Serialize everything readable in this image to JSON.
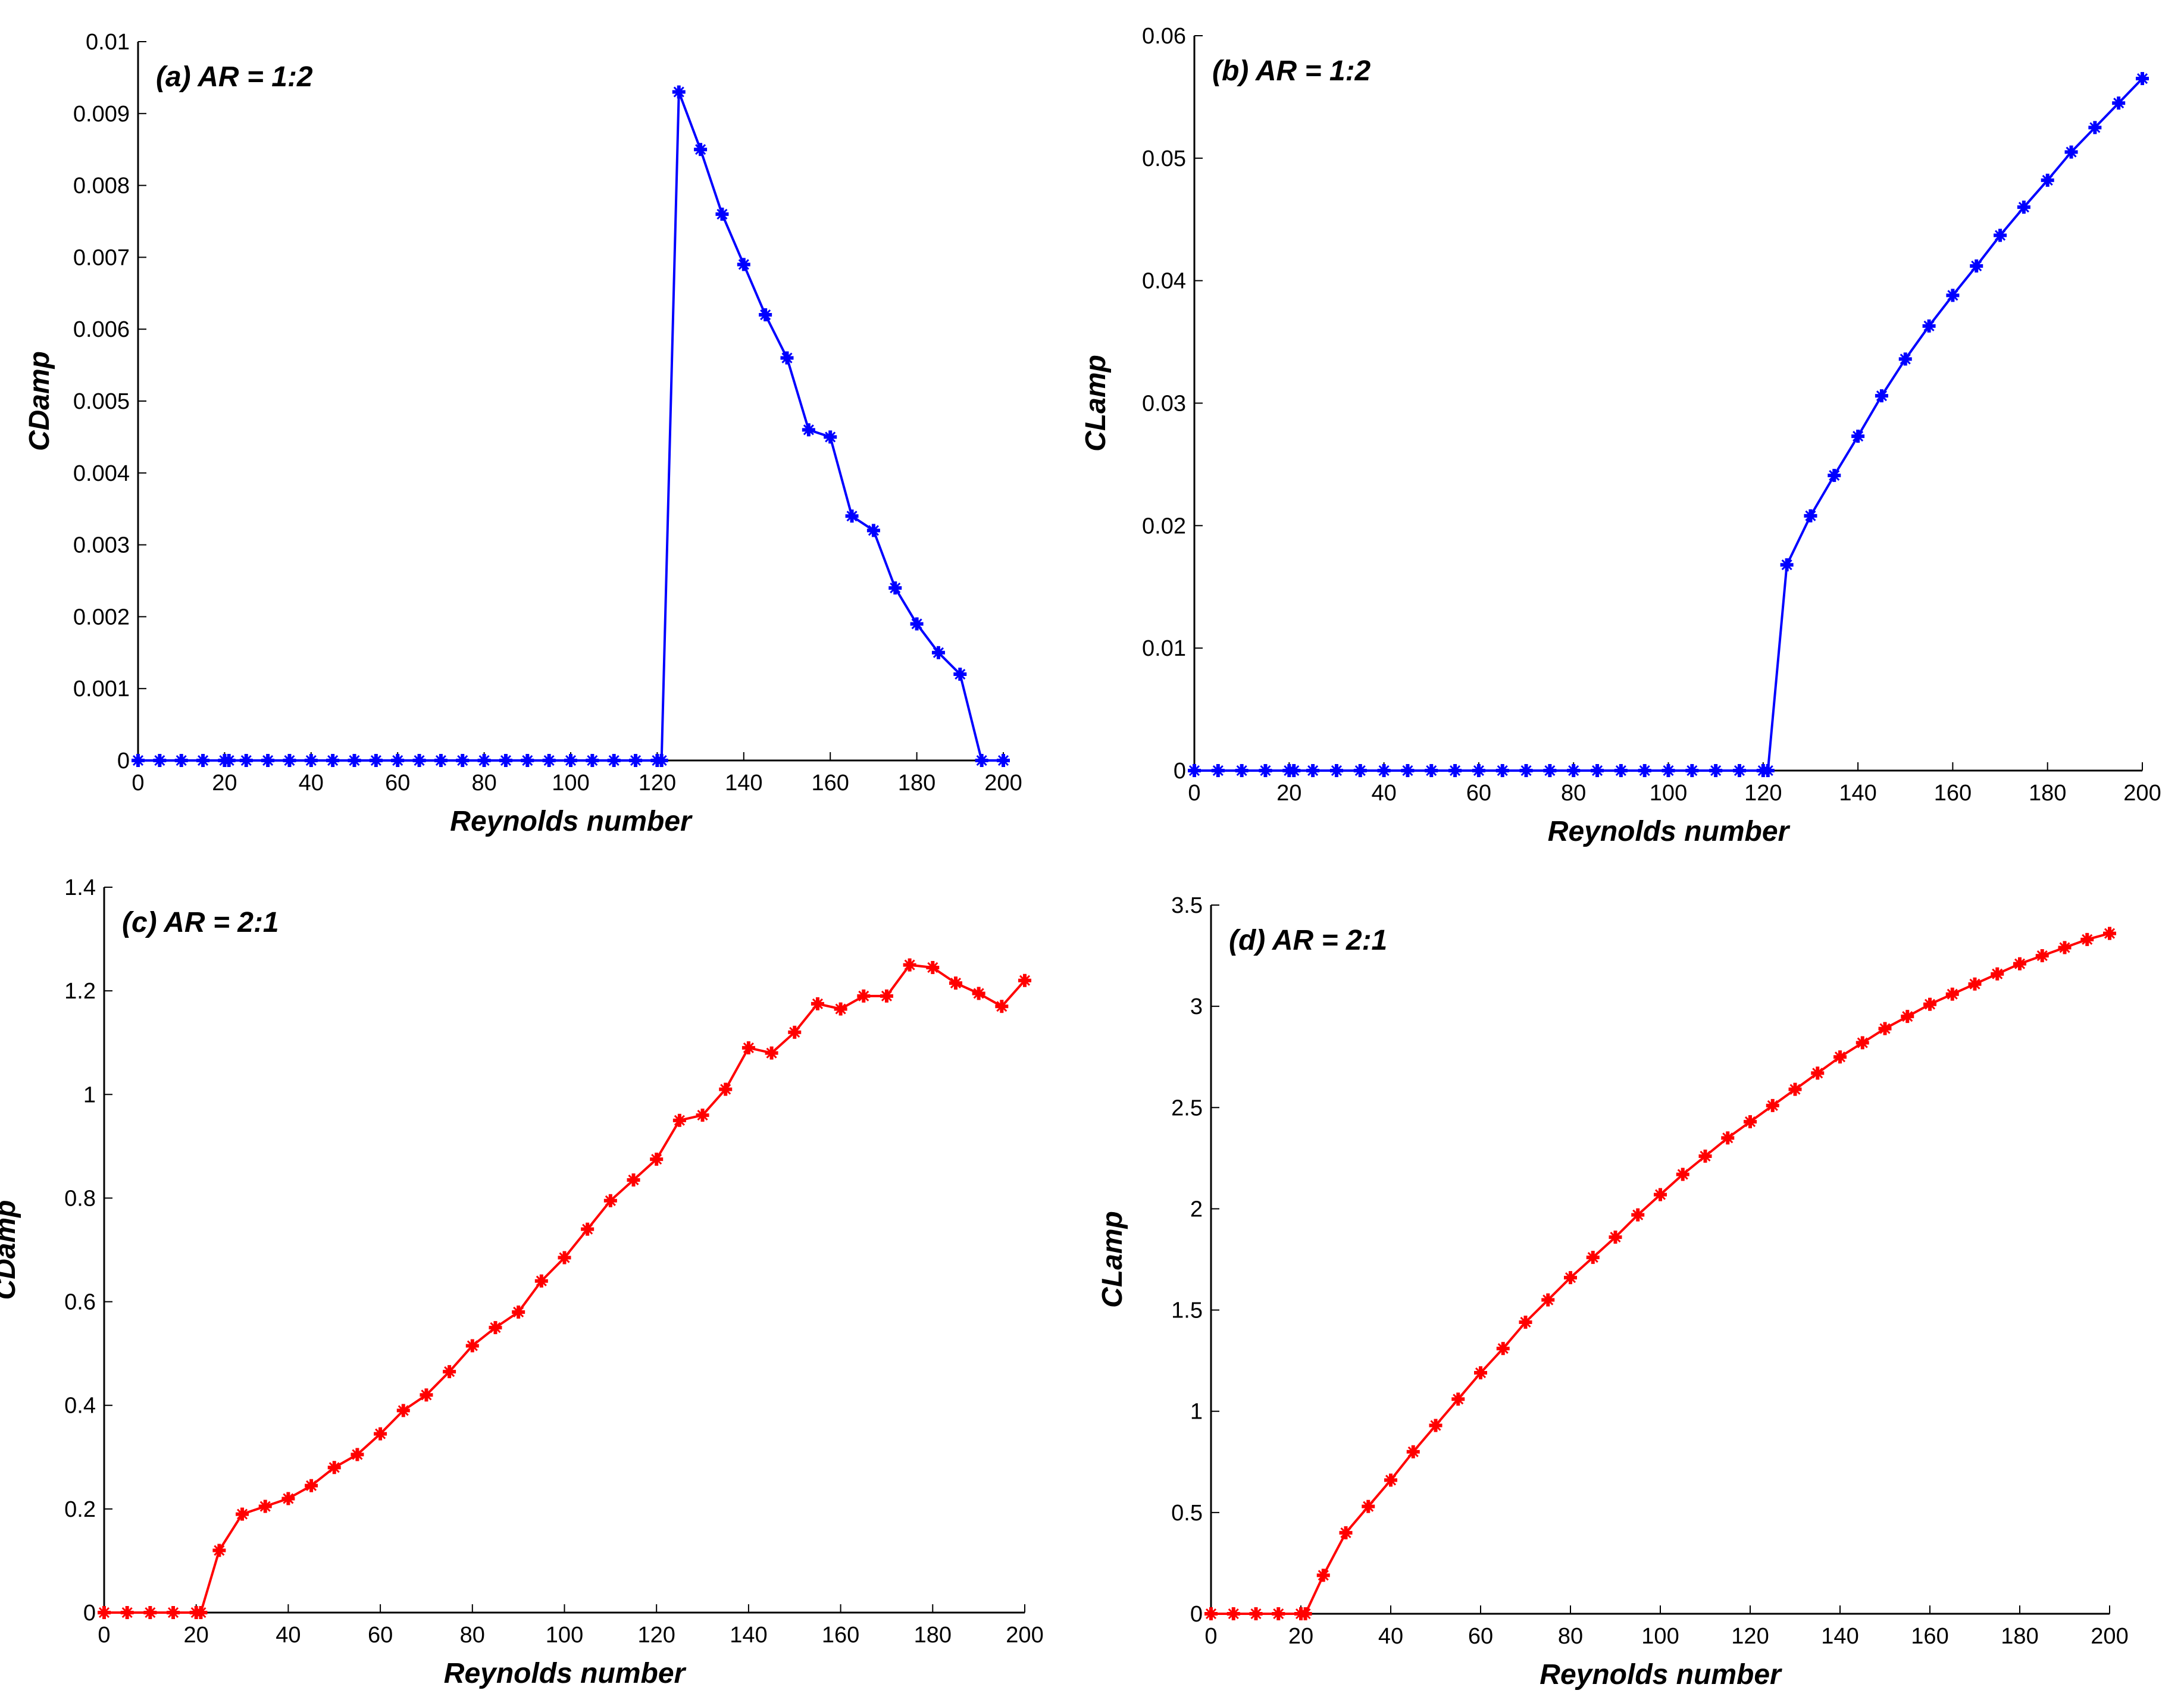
{
  "chart_data": [
    {
      "type": "line",
      "title": "(a) AR = 1:2",
      "xlabel": "Reynolds number",
      "ylabel": "CDamp",
      "xlim": [
        0,
        200
      ],
      "ylim": [
        0,
        0.01
      ],
      "xticks": [
        0,
        20,
        40,
        60,
        80,
        100,
        120,
        140,
        160,
        180,
        200
      ],
      "yticks": [
        0,
        0.001,
        0.002,
        0.003,
        0.004,
        0.005,
        0.006,
        0.007,
        0.008,
        0.009,
        0.01
      ],
      "color": "#0000ff",
      "grid": false,
      "series": [
        {
          "name": "CDamp",
          "x": [
            0,
            5,
            10,
            15,
            20,
            21,
            25,
            30,
            35,
            40,
            45,
            50,
            55,
            60,
            65,
            70,
            75,
            80,
            85,
            90,
            95,
            100,
            105,
            110,
            115,
            120,
            121,
            125,
            130,
            135,
            140,
            145,
            150,
            155,
            160,
            165,
            170,
            175,
            180,
            185,
            190,
            195,
            200
          ],
          "y": [
            0,
            0,
            0,
            0,
            0,
            0,
            0,
            0,
            0,
            0,
            0,
            0,
            0,
            0,
            0,
            0,
            0,
            0,
            0,
            0,
            0,
            0,
            0,
            0,
            0,
            0,
            0,
            0.0093,
            0.0085,
            0.0076,
            0.0069,
            0.0062,
            0.0056,
            0.0046,
            0.0045,
            0.0034,
            0.0032,
            0.0024,
            0.0019,
            0.0015,
            0.0012,
            0,
            0
          ]
        }
      ]
    },
    {
      "type": "line",
      "title": "(b) AR = 1:2",
      "xlabel": "Reynolds number",
      "ylabel": "CLamp",
      "xlim": [
        0,
        200
      ],
      "ylim": [
        0,
        0.06
      ],
      "xticks": [
        0,
        20,
        40,
        60,
        80,
        100,
        120,
        140,
        160,
        180,
        200
      ],
      "yticks": [
        0,
        0.01,
        0.02,
        0.03,
        0.04,
        0.05,
        0.06
      ],
      "color": "#0000ff",
      "grid": false,
      "series": [
        {
          "name": "CLamp",
          "x": [
            0,
            5,
            10,
            15,
            20,
            21,
            25,
            30,
            35,
            40,
            45,
            50,
            55,
            60,
            65,
            70,
            75,
            80,
            85,
            90,
            95,
            100,
            105,
            110,
            115,
            120,
            121,
            125,
            130,
            135,
            140,
            145,
            150,
            155,
            160,
            165,
            170,
            175,
            180,
            185,
            190,
            195,
            200
          ],
          "y": [
            0,
            0,
            0,
            0,
            0,
            0,
            0,
            0,
            0,
            0,
            0,
            0,
            0,
            0,
            0,
            0,
            0,
            0,
            0,
            0,
            0,
            0,
            0,
            0,
            0,
            0,
            0,
            0.0168,
            0.0208,
            0.0241,
            0.0273,
            0.0306,
            0.0336,
            0.0363,
            0.0388,
            0.0412,
            0.0437,
            0.046,
            0.0482,
            0.0505,
            0.0525,
            0.0545,
            0.0565
          ]
        }
      ]
    },
    {
      "type": "line",
      "title": "(c) AR = 2:1",
      "xlabel": "Reynolds number",
      "ylabel": "CDamp",
      "xlim": [
        0,
        200
      ],
      "ylim": [
        0,
        1.4
      ],
      "xticks": [
        0,
        20,
        40,
        60,
        80,
        100,
        120,
        140,
        160,
        180,
        200
      ],
      "yticks": [
        0,
        0.2,
        0.4,
        0.6,
        0.8,
        1,
        1.2,
        1.4
      ],
      "color": "#ff0000",
      "grid": false,
      "series": [
        {
          "name": "CDamp",
          "x": [
            0,
            5,
            10,
            15,
            20,
            21,
            25,
            30,
            35,
            40,
            45,
            50,
            55,
            60,
            65,
            70,
            75,
            80,
            85,
            90,
            95,
            100,
            105,
            110,
            115,
            120,
            125,
            130,
            135,
            140,
            145,
            150,
            155,
            160,
            165,
            170,
            175,
            180,
            185,
            190,
            195,
            200
          ],
          "y": [
            0,
            0,
            0,
            0,
            0,
            0,
            0.12,
            0.19,
            0.205,
            0.22,
            0.245,
            0.28,
            0.305,
            0.345,
            0.39,
            0.42,
            0.465,
            0.515,
            0.55,
            0.58,
            0.64,
            0.685,
            0.74,
            0.795,
            0.835,
            0.875,
            0.95,
            0.96,
            1.01,
            1.09,
            1.08,
            1.12,
            1.175,
            1.165,
            1.19,
            1.19,
            1.25,
            1.245,
            1.215,
            1.195,
            1.17,
            1.22
          ]
        }
      ]
    },
    {
      "type": "line",
      "title": "(d) AR = 2:1",
      "xlabel": "Reynolds number",
      "ylabel": "CLamp",
      "xlim": [
        0,
        200
      ],
      "ylim": [
        0,
        3.5
      ],
      "xticks": [
        0,
        20,
        40,
        60,
        80,
        100,
        120,
        140,
        160,
        180,
        200
      ],
      "yticks": [
        0,
        0.5,
        1,
        1.5,
        2,
        2.5,
        3,
        3.5
      ],
      "color": "#ff0000",
      "grid": false,
      "series": [
        {
          "name": "CLamp",
          "x": [
            0,
            5,
            10,
            15,
            20,
            21,
            25,
            30,
            35,
            40,
            45,
            50,
            55,
            60,
            65,
            70,
            75,
            80,
            85,
            90,
            95,
            100,
            105,
            110,
            115,
            120,
            125,
            130,
            135,
            140,
            145,
            150,
            155,
            160,
            165,
            170,
            175,
            180,
            185,
            190,
            195,
            200
          ],
          "y": [
            0,
            0,
            0,
            0,
            0,
            0,
            0.19,
            0.4,
            0.53,
            0.66,
            0.8,
            0.93,
            1.06,
            1.19,
            1.31,
            1.44,
            1.55,
            1.66,
            1.76,
            1.86,
            1.97,
            2.07,
            2.17,
            2.26,
            2.35,
            2.43,
            2.51,
            2.59,
            2.67,
            2.75,
            2.82,
            2.89,
            2.95,
            3.01,
            3.06,
            3.11,
            3.16,
            3.21,
            3.25,
            3.29,
            3.33,
            3.36
          ]
        }
      ]
    }
  ]
}
